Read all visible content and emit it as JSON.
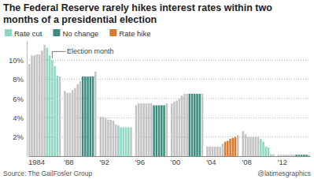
{
  "chart_data": {
    "type": "bar",
    "title": "The Federal Reserve rarely hikes interest rates within two months of a presidential election",
    "annotation": "Election month",
    "source": "Source: The GailFosler Group",
    "credit": "@latimesgraphics",
    "categories": [
      "1984",
      null,
      null,
      null,
      null,
      null,
      null,
      null,
      null,
      null,
      null,
      null,
      null,
      null,
      "'88",
      null,
      null,
      null,
      null,
      null,
      null,
      null,
      null,
      null,
      null,
      null,
      null,
      null,
      "'92",
      null,
      null,
      null,
      null,
      null,
      null,
      null,
      null,
      null,
      null,
      null,
      null,
      null,
      "'96",
      null,
      null,
      null,
      null,
      null,
      null,
      null,
      null,
      null,
      null,
      null,
      null,
      null,
      "'00",
      null,
      null,
      null,
      null,
      null,
      null,
      null,
      null,
      null,
      null,
      null,
      null,
      null,
      "'04",
      null,
      null,
      null,
      null,
      null,
      null,
      null,
      null,
      null,
      null,
      null,
      null,
      null,
      "'08",
      null,
      null,
      null,
      null,
      null,
      null,
      null,
      null,
      null,
      null,
      null,
      null,
      null,
      "'12",
      null,
      null,
      null,
      null,
      null,
      null,
      null,
      null,
      null,
      null,
      null,
      null
    ],
    "series": [
      {
        "color": "#c4c4c4",
        "values": [
          9.6,
          10.5,
          10.5,
          10.6,
          10.6,
          11.0,
          11.6,
          null,
          null,
          null,
          null,
          null,
          8.3,
          null,
          6.8,
          6.6,
          6.6,
          6.9,
          7.1,
          7.5,
          7.8,
          null,
          null,
          null,
          null,
          null,
          8.8,
          null,
          4.1,
          4.1,
          4.0,
          3.8,
          3.8,
          3.7,
          3.3,
          null,
          null,
          null,
          null,
          null,
          3.0,
          null,
          5.3,
          5.5,
          5.5,
          5.5,
          5.5,
          5.5,
          5.5,
          null,
          null,
          null,
          null,
          null,
          5.5,
          null,
          5.5,
          5.7,
          5.8,
          6.0,
          6.3,
          6.5,
          6.5,
          null,
          null,
          null,
          null,
          null,
          6.5,
          null,
          1.0,
          1.0,
          1.0,
          1.0,
          1.0,
          1.0,
          1.3,
          null,
          null,
          null,
          null,
          null,
          2.2,
          null,
          2.6,
          2.3,
          2.0,
          2.0,
          2.0,
          2.0,
          2.0,
          null,
          null,
          null,
          null,
          null,
          0.2,
          null,
          0.15,
          0.15,
          0.15,
          0.15,
          0.15,
          0.15,
          0.15,
          null,
          null,
          null,
          null,
          null,
          0.15
        ]
      },
      {
        "name": "Rate cut",
        "color": "#8fd6c4",
        "values": [
          null,
          null,
          null,
          null,
          null,
          null,
          null,
          11.3,
          10.5,
          10.0,
          9.4,
          8.4,
          null,
          null,
          null,
          null,
          null,
          null,
          null,
          null,
          null,
          null,
          null,
          null,
          null,
          null,
          null,
          null,
          null,
          null,
          null,
          null,
          null,
          null,
          null,
          3.2,
          3.0,
          3.0,
          3.0,
          3.0,
          null,
          null,
          null,
          null,
          null,
          null,
          null,
          null,
          null,
          null,
          null,
          null,
          null,
          null,
          null,
          null,
          null,
          null,
          null,
          null,
          null,
          null,
          null,
          null,
          null,
          null,
          null,
          null,
          null,
          null,
          null,
          null,
          null,
          null,
          null,
          null,
          null,
          null,
          null,
          null,
          null,
          null,
          null,
          null,
          null,
          null,
          null,
          null,
          null,
          null,
          null,
          1.8,
          1.5,
          1.0,
          0.9,
          0.2,
          null,
          null,
          null,
          null,
          null,
          null,
          null,
          null,
          null,
          null,
          null,
          null,
          null,
          null,
          null
        ]
      },
      {
        "name": "No change",
        "color": "#3d8c80",
        "values": [
          null,
          null,
          null,
          null,
          null,
          null,
          null,
          null,
          null,
          null,
          null,
          null,
          null,
          null,
          null,
          null,
          null,
          null,
          null,
          null,
          null,
          8.3,
          8.3,
          8.3,
          8.3,
          8.3,
          null,
          null,
          null,
          null,
          null,
          null,
          null,
          null,
          null,
          null,
          null,
          null,
          null,
          null,
          null,
          null,
          null,
          null,
          null,
          null,
          null,
          null,
          null,
          5.3,
          5.3,
          5.3,
          5.3,
          5.3,
          null,
          null,
          null,
          null,
          null,
          null,
          null,
          null,
          null,
          6.5,
          6.5,
          6.5,
          6.5,
          6.5,
          null,
          null,
          null,
          null,
          null,
          null,
          null,
          null,
          null,
          null,
          null,
          null,
          null,
          null,
          null,
          null,
          null,
          null,
          null,
          null,
          null,
          null,
          null,
          null,
          null,
          null,
          null,
          null,
          null,
          null,
          null,
          null,
          null,
          null,
          null,
          null,
          null,
          0.15,
          0.15,
          0.15,
          0.15,
          0.15,
          null
        ]
      },
      {
        "name": "Rate hike",
        "color": "#d97a2e",
        "values": [
          null,
          null,
          null,
          null,
          null,
          null,
          null,
          null,
          null,
          null,
          null,
          null,
          null,
          null,
          null,
          null,
          null,
          null,
          null,
          null,
          null,
          null,
          null,
          null,
          null,
          null,
          null,
          null,
          null,
          null,
          null,
          null,
          null,
          null,
          null,
          null,
          null,
          null,
          null,
          null,
          null,
          null,
          null,
          null,
          null,
          null,
          null,
          null,
          null,
          null,
          null,
          null,
          null,
          null,
          null,
          null,
          null,
          null,
          null,
          null,
          null,
          null,
          null,
          null,
          null,
          null,
          null,
          null,
          null,
          null,
          null,
          null,
          null,
          null,
          null,
          null,
          null,
          1.5,
          1.6,
          1.8,
          1.9,
          2.0,
          null,
          null,
          null,
          null,
          null,
          null,
          null,
          null,
          null,
          null,
          null,
          null,
          null,
          null,
          null,
          null,
          null,
          null,
          null,
          null,
          null,
          null,
          null,
          null,
          null,
          null,
          null,
          null,
          null
        ]
      }
    ],
    "ylim": [
      0,
      12
    ],
    "yticks": [
      {
        "value": 2,
        "label": "2%"
      },
      {
        "value": 4,
        "label": "4%"
      },
      {
        "value": 6,
        "label": "6%"
      },
      {
        "value": 8,
        "label": "8%"
      },
      {
        "value": 10,
        "label": "10%"
      }
    ],
    "grid": true,
    "legend": "top-left"
  }
}
